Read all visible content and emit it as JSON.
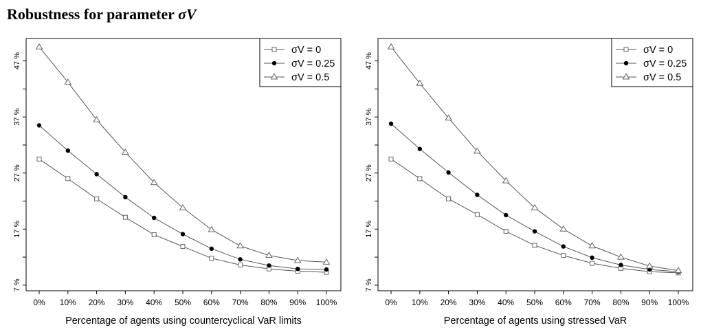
{
  "title": {
    "text": "Robustness for parameter",
    "symbol": "σV"
  },
  "chart_data": [
    {
      "type": "line",
      "xlabel": "Percentage of agents using countercyclical VaR limits",
      "ylabel": "",
      "categories": [
        "0%",
        "10%",
        "20%",
        "30%",
        "40%",
        "50%",
        "60%",
        "70%",
        "80%",
        "90%",
        "100%"
      ],
      "yticks": [
        7,
        17,
        27,
        37,
        47
      ],
      "ytick_labels": [
        "7 %",
        "17 %",
        "27 %",
        "37 %",
        "47 %"
      ],
      "ylim": [
        6,
        51
      ],
      "grid": false,
      "legend_position": "top-right",
      "series": [
        {
          "name": "σV = 0",
          "marker": "open-square",
          "values": [
            29.5,
            26.0,
            22.4,
            19.1,
            16.0,
            13.9,
            11.8,
            10.6,
            9.9,
            9.5,
            9.3
          ]
        },
        {
          "name": "σV = 0.25",
          "marker": "filled-circle",
          "values": [
            35.5,
            31.0,
            26.8,
            22.7,
            19.0,
            16.1,
            13.5,
            11.6,
            10.5,
            9.9,
            9.8
          ]
        },
        {
          "name": "σV = 0.5",
          "marker": "open-triangle",
          "values": [
            49.5,
            43.2,
            36.5,
            30.7,
            25.3,
            20.8,
            16.9,
            14.0,
            12.3,
            11.4,
            11.1
          ]
        }
      ]
    },
    {
      "type": "line",
      "xlabel": "Percentage of agents using stressed VaR",
      "ylabel": "",
      "categories": [
        "0%",
        "10%",
        "20%",
        "30%",
        "40%",
        "50%",
        "60%",
        "70%",
        "80%",
        "90%",
        "100%"
      ],
      "yticks": [
        7,
        17,
        27,
        37,
        47
      ],
      "ytick_labels": [
        "7 %",
        "17 %",
        "27 %",
        "37 %",
        "47 %"
      ],
      "ylim": [
        6,
        51
      ],
      "grid": false,
      "legend_position": "top-right",
      "series": [
        {
          "name": "σV = 0",
          "marker": "open-square",
          "values": [
            29.5,
            26.0,
            22.4,
            19.6,
            16.6,
            14.1,
            12.3,
            10.9,
            10.0,
            9.4,
            9.2
          ]
        },
        {
          "name": "σV = 0.25",
          "marker": "filled-circle",
          "values": [
            35.8,
            31.3,
            27.1,
            23.1,
            19.5,
            16.6,
            13.9,
            11.9,
            10.6,
            9.8,
            9.4
          ]
        },
        {
          "name": "σV = 0.5",
          "marker": "open-triangle",
          "values": [
            49.5,
            43.0,
            36.8,
            30.9,
            25.6,
            20.8,
            17.0,
            14.0,
            12.0,
            10.4,
            9.6
          ]
        }
      ]
    }
  ]
}
